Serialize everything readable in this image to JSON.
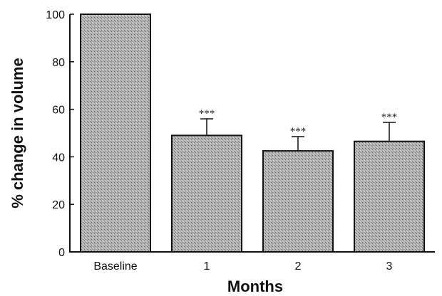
{
  "chart_data": {
    "type": "bar",
    "title": "",
    "xlabel": "Months",
    "ylabel": "% change in volume",
    "categories": [
      "Baseline",
      "1",
      "2",
      "3"
    ],
    "values": [
      100,
      49,
      42.5,
      46.5
    ],
    "error_upper": [
      100,
      56,
      48.5,
      54.5
    ],
    "annotations": [
      "",
      "***",
      "***",
      "***"
    ],
    "ylim": [
      0,
      100
    ],
    "yticks": [
      "0",
      "20",
      "40",
      "60",
      "80",
      "100"
    ],
    "grid": false,
    "legend": "none",
    "bar_color": "#a9a9a9"
  }
}
